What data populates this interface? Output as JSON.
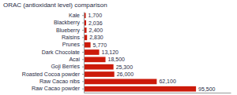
{
  "chart_data": {
    "type": "bar",
    "title": "ORAC (antioxidant level) comparison",
    "orientation": "horizontal",
    "categories": [
      "Kale",
      "Blackberry",
      "Blueberry",
      "Raisins",
      "Prunes",
      "Dark Chocolate",
      "Acai",
      "Goji Berries",
      "Roasted Cocoa powder",
      "Raw Cacao nibs",
      "Raw Cacao powder"
    ],
    "values": [
      1700,
      2036,
      2400,
      2830,
      5770,
      13120,
      18500,
      25300,
      26000,
      62100,
      95500
    ],
    "value_labels": [
      "1,700",
      "2,036",
      "2,400",
      "2,830",
      "5,770",
      "13,120",
      "18,500",
      "25,300",
      "26,000",
      "62,100",
      "95,500"
    ],
    "color": "#cc1a0a",
    "xlim": [
      0,
      125000
    ],
    "xticks": [],
    "data_labels": true,
    "tick_labels": "y",
    "grid": false
  }
}
